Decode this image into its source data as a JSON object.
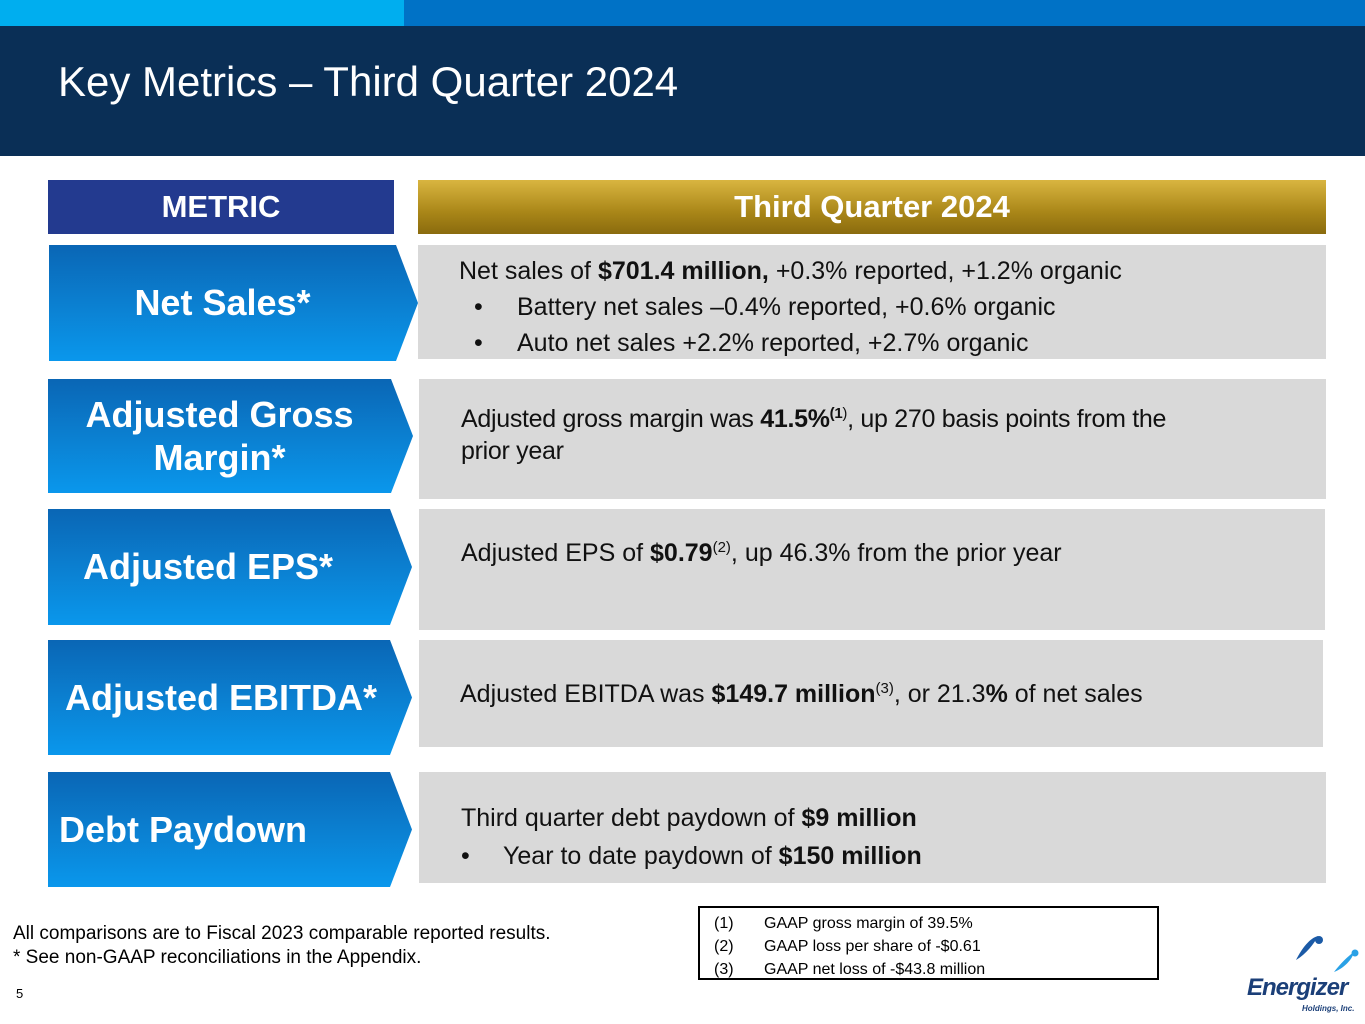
{
  "title": "Key Metrics – Third Quarter 2024",
  "colors": {
    "header_bg": "#0a2f56",
    "accent_light": "#00aeef",
    "accent_blue": "#0072c6",
    "metric_head_bg": "#233a8f",
    "gold": "#a98618",
    "panel_bg": "#d9d9d9"
  },
  "table": {
    "col_metric": "METRIC",
    "col_quarter": "Third Quarter 2024",
    "rows": {
      "net_sales": {
        "label": "Net Sales*",
        "l1_pre": "Net sales of ",
        "l1_bold": "$701.4 million,",
        "l1_post": " +0.3% reported, +1.2% organic",
        "bullet_char": "•",
        "b1": "Battery net sales –0.4% reported, +0.6% organic",
        "b2": "Auto net sales +2.2% reported, +2.7% organic"
      },
      "gross_margin": {
        "label_l1": "Adjusted Gross",
        "label_l2": "Margin*",
        "pre": "Adjusted gross margin was ",
        "bold": "41.5%",
        "sup": "(1",
        "sup_close": ")",
        "post": ", up 270 basis points from the",
        "l2": "prior year"
      },
      "eps": {
        "label": "Adjusted EPS*",
        "pre": "Adjusted EPS of ",
        "bold": "$0.79",
        "sup": "(2)",
        "post": ", up 46.3% from the prior year"
      },
      "ebitda": {
        "label": "Adjusted EBITDA*",
        "pre": "Adjusted EBITDA was ",
        "bold": "$149.7 million",
        "sup": "(3)",
        "mid": ", or 21.3",
        "bold2": "%",
        "post": " of net sales"
      },
      "debt": {
        "label": "Debt Paydown",
        "l1_pre": "Third quarter debt paydown of ",
        "l1_bold": "$9 million",
        "bullet_char": "•",
        "b1_pre": "Year to date paydown of ",
        "b1_bold": "$150 million"
      }
    }
  },
  "notes": {
    "line1": "All comparisons are to Fiscal 2023 comparable reported results.",
    "line2": "* See non-GAAP reconciliations in the Appendix."
  },
  "footnotes": [
    {
      "num": "(1)",
      "text": "GAAP gross margin of 39.5%"
    },
    {
      "num": "(2)",
      "text": "GAAP loss per share of -$0.61"
    },
    {
      "num": "(3)",
      "text": "GAAP net loss of -$43.8 million"
    }
  ],
  "page_number": "5",
  "logo": {
    "name": "Energizer",
    "sub": "Holdings, Inc."
  }
}
